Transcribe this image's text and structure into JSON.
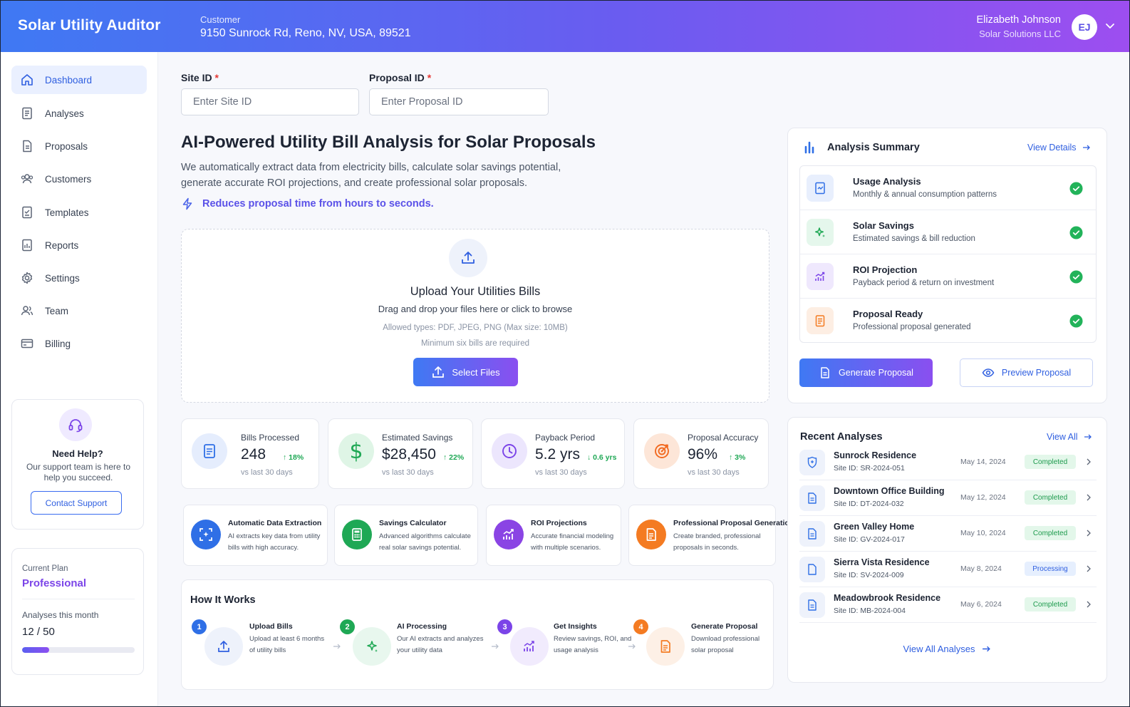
{
  "header": {
    "app_title": "Solar Utility Auditor",
    "customer_label": "Customer",
    "customer_address": "9150 Sunrock Rd, Reno, NV, USA, 89521",
    "user_name": "Elizabeth Johnson",
    "user_org": "Solar Solutions LLC",
    "avatar_initials": "EJ"
  },
  "sidebar": {
    "items": [
      {
        "label": "Dashboard",
        "icon": "home-icon"
      },
      {
        "label": "Analyses",
        "icon": "document-icon"
      },
      {
        "label": "Proposals",
        "icon": "file-icon"
      },
      {
        "label": "Customers",
        "icon": "users-icon"
      },
      {
        "label": "Templates",
        "icon": "template-icon"
      },
      {
        "label": "Reports",
        "icon": "report-icon"
      },
      {
        "label": "Settings",
        "icon": "gear-icon"
      },
      {
        "label": "Team",
        "icon": "team-icon"
      },
      {
        "label": "Billing",
        "icon": "card-icon"
      }
    ],
    "help": {
      "title": "Need Help?",
      "text": "Our support team is here to help you succeed.",
      "button": "Contact Support"
    },
    "plan": {
      "label": "Current Plan",
      "name": "Professional",
      "usage_label": "Analyses this month",
      "usage": "12 / 50",
      "usage_fraction": 0.24
    }
  },
  "form": {
    "site_id_label": "Site ID",
    "site_id_placeholder": "Enter Site ID",
    "proposal_id_label": "Proposal ID",
    "proposal_id_placeholder": "Enter Proposal ID",
    "required_mark": "*"
  },
  "hero": {
    "title": "AI-Powered Utility Bill Analysis for Solar Proposals",
    "description": "We automatically extract data from electricity bills, calculate solar savings potential, generate accurate ROI projections, and create professional solar proposals.",
    "tagline": "Reduces proposal time from hours to seconds."
  },
  "upload": {
    "title": "Upload Your Utilities Bills",
    "subtitle": "Drag and drop your files here or click to browse",
    "allowed_types": "Allowed types: PDF, JPEG, PNG (Max size: 10MB)",
    "minimum": "Minimum six bills are required",
    "button": "Select Files"
  },
  "stats": [
    {
      "label": "Bills Processed",
      "value": "248",
      "delta": "↑ 18%",
      "note": "vs last 30 days",
      "color": "#2f6fe6"
    },
    {
      "label": "Estimated Savings",
      "value": "$28,450",
      "delta": "↑ 22%",
      "note": "vs last 30 days",
      "color": "#1fa855"
    },
    {
      "label": "Payback Period",
      "value": "5.2 yrs",
      "delta": "↓ 0.6 yrs",
      "note": "vs last 30 days",
      "color": "#7b44e8"
    },
    {
      "label": "Proposal Accuracy",
      "value": "96%",
      "delta": "↑ 3%",
      "note": "vs last 30 days",
      "color": "#f26a21"
    }
  ],
  "features": [
    {
      "title": "Automatic Data Extraction",
      "desc1": "AI extracts key data from utility",
      "desc2": "bills with high accuracy."
    },
    {
      "title": "Savings Calculator",
      "desc1": "Advanced algorithms calculate",
      "desc2": "real solar savings potential."
    },
    {
      "title": "ROI Projections",
      "desc1": "Accurate financial modeling",
      "desc2": "with multiple scenarios."
    },
    {
      "title": "Professional Proposal Generation",
      "desc1": "Create branded, professional",
      "desc2": "proposals in seconds."
    }
  ],
  "how_it_works": {
    "title": "How It Works",
    "steps": [
      {
        "num": "1",
        "title": "Upload Bills",
        "desc1": "Upload at least 6 months",
        "desc2": "of utility bills"
      },
      {
        "num": "2",
        "title": "AI Processing",
        "desc1": "Our AI extracts and analyzes",
        "desc2": "your utility data"
      },
      {
        "num": "3",
        "title": "Get Insights",
        "desc1": "Review savings, ROI, and",
        "desc2": "usage analysis"
      },
      {
        "num": "4",
        "title": "Generate Proposal",
        "desc1": "Download professional",
        "desc2": "solar proposal"
      }
    ]
  },
  "summary": {
    "title": "Analysis Summary",
    "view_details": "View Details",
    "items": [
      {
        "name": "Usage Analysis",
        "desc": "Monthly & annual consumption patterns"
      },
      {
        "name": "Solar Savings",
        "desc": "Estimated savings & bill reduction"
      },
      {
        "name": "ROI Projection",
        "desc": "Payback period & return on investment"
      },
      {
        "name": "Proposal Ready",
        "desc": "Professional proposal generated"
      }
    ],
    "generate_button": "Generate Proposal",
    "preview_button": "Preview Proposal"
  },
  "recent": {
    "title": "Recent Analyses",
    "view_all": "View All",
    "rows": [
      {
        "name": "Sunrock Residence",
        "site": "Site ID: SR-2024-051",
        "date": "May 14, 2024",
        "status": "Completed"
      },
      {
        "name": "Downtown Office Building",
        "site": "Site ID: DT-2024-032",
        "date": "May 12, 2024",
        "status": "Completed"
      },
      {
        "name": "Green Valley Home",
        "site": "Site ID: GV-2024-017",
        "date": "May 10, 2024",
        "status": "Completed"
      },
      {
        "name": "Sierra Vista Residence",
        "site": "Site ID: SV-2024-009",
        "date": "May 8, 2024",
        "status": "Processing"
      },
      {
        "name": "Meadowbrook Residence",
        "site": "Site ID: MB-2024-004",
        "date": "May 6, 2024",
        "status": "Completed"
      }
    ],
    "view_all_analyses": "View All Analyses"
  }
}
